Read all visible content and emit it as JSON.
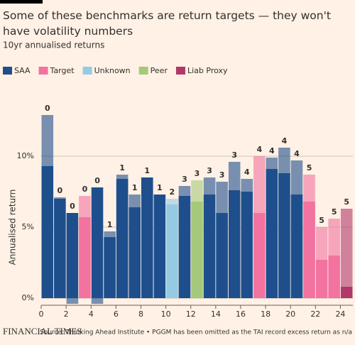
{
  "chart_data": {
    "type": "bar",
    "title": "Some of these benchmarks are return targets — they won't have volatility numbers",
    "subtitle": "10yr annualised returns",
    "y_label": "Annualised return",
    "source": "Source: Thinking Ahead Institute • PGGM has been omitted as the TAI record excess return as n/a",
    "brand": "FINANCIAL TIMES",
    "legend": [
      {
        "name": "SAA",
        "color": "#1e4f8c"
      },
      {
        "name": "Target",
        "color": "#f2739f"
      },
      {
        "name": "Unknown",
        "color": "#94cbe3"
      },
      {
        "name": "Peer",
        "color": "#a5c97a"
      },
      {
        "name": "Liab Proxy",
        "color": "#b0386a"
      }
    ],
    "x": [
      0,
      1,
      2,
      3,
      4,
      5,
      6,
      7,
      8,
      9,
      10,
      11,
      12,
      13,
      14,
      15,
      16,
      17,
      18,
      19,
      20,
      21,
      22,
      23,
      24
    ],
    "group": [
      0,
      0,
      0,
      1,
      0,
      0,
      0,
      0,
      0,
      0,
      2,
      0,
      3,
      0,
      0,
      0,
      0,
      1,
      0,
      0,
      0,
      1,
      1,
      1,
      4
    ],
    "values": [
      9.3,
      7.0,
      6.0,
      5.7,
      7.8,
      4.3,
      8.4,
      6.4,
      8.5,
      7.3,
      6.6,
      7.2,
      6.8,
      7.3,
      6.0,
      7.6,
      7.5,
      6.0,
      9.1,
      8.8,
      7.3,
      6.8,
      2.7,
      3.0,
      0.8
    ],
    "values_light": [
      12.9,
      7.1,
      -0.4,
      7.2,
      -0.4,
      4.7,
      8.7,
      7.3,
      8.5,
      7.3,
      7.0,
      7.9,
      8.3,
      8.5,
      8.2,
      9.6,
      8.4,
      10.0,
      9.9,
      10.6,
      9.7,
      8.7,
      5.0,
      5.6,
      6.3
    ],
    "annotations": [
      0,
      0,
      0,
      0,
      0,
      1,
      1,
      1,
      1,
      1,
      2,
      3,
      3,
      3,
      3,
      3,
      4,
      4,
      4,
      4,
      4,
      5,
      5,
      5,
      5
    ],
    "xlim": [
      0,
      25
    ],
    "xticks": [
      0,
      2,
      4,
      6,
      8,
      10,
      12,
      14,
      16,
      18,
      20,
      22,
      24
    ],
    "ylim": [
      -0.5,
      13.5
    ],
    "yticks": [
      {
        "value": 0,
        "label": "0%"
      },
      {
        "value": 5,
        "label": "5%"
      },
      {
        "value": 10,
        "label": "10%"
      }
    ],
    "grid": true
  }
}
